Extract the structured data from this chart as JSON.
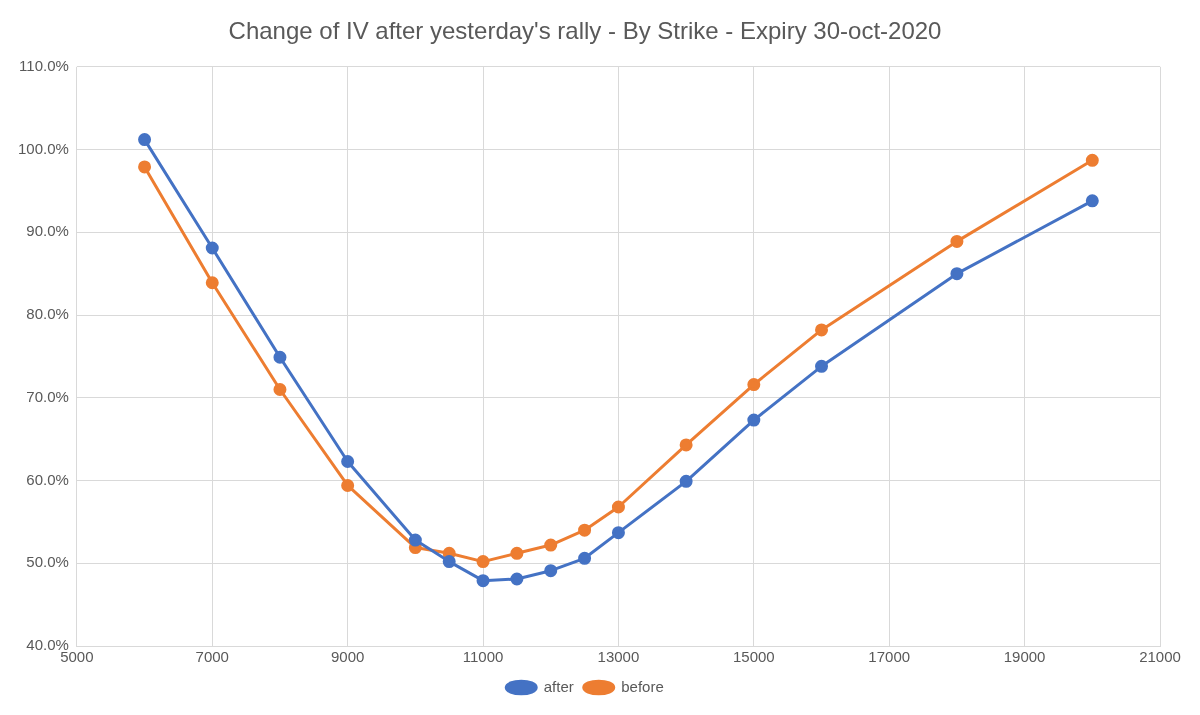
{
  "chart_data": {
    "type": "line",
    "title": "Change of IV after yesterday's rally - By Strike - Expiry 30-oct-2020",
    "x": [
      6000,
      7000,
      8000,
      9000,
      10000,
      10500,
      11000,
      11500,
      12000,
      12500,
      13000,
      14000,
      15000,
      16000,
      18000,
      20000
    ],
    "series": [
      {
        "name": "after",
        "color": "#4472c4",
        "values": [
          101.2,
          88.1,
          74.9,
          62.3,
          52.8,
          50.2,
          47.9,
          48.1,
          49.1,
          50.6,
          53.7,
          59.9,
          67.3,
          73.8,
          85.0,
          93.8
        ]
      },
      {
        "name": "before",
        "color": "#ed7d31",
        "values": [
          97.9,
          83.9,
          71.0,
          59.4,
          51.9,
          51.2,
          50.2,
          51.2,
          52.2,
          54.0,
          56.8,
          64.3,
          71.6,
          78.2,
          88.9,
          98.7
        ]
      }
    ],
    "xlim": [
      5000,
      21000
    ],
    "xticks": [
      5000,
      7000,
      9000,
      11000,
      13000,
      15000,
      17000,
      19000,
      21000
    ],
    "ylim": [
      40,
      110
    ],
    "yticks": [
      {
        "value": 40,
        "label": "40.0%"
      },
      {
        "value": 50,
        "label": "50.0%"
      },
      {
        "value": 60,
        "label": "60.0%"
      },
      {
        "value": 70,
        "label": "70.0%"
      },
      {
        "value": 80,
        "label": "80.0%"
      },
      {
        "value": 90,
        "label": "90.0%"
      },
      {
        "value": 100,
        "label": "100.0%"
      },
      {
        "value": 110,
        "label": "110.0%"
      }
    ],
    "grid": true,
    "legend": "bottom",
    "marker": "circle",
    "line_style": "solid"
  }
}
